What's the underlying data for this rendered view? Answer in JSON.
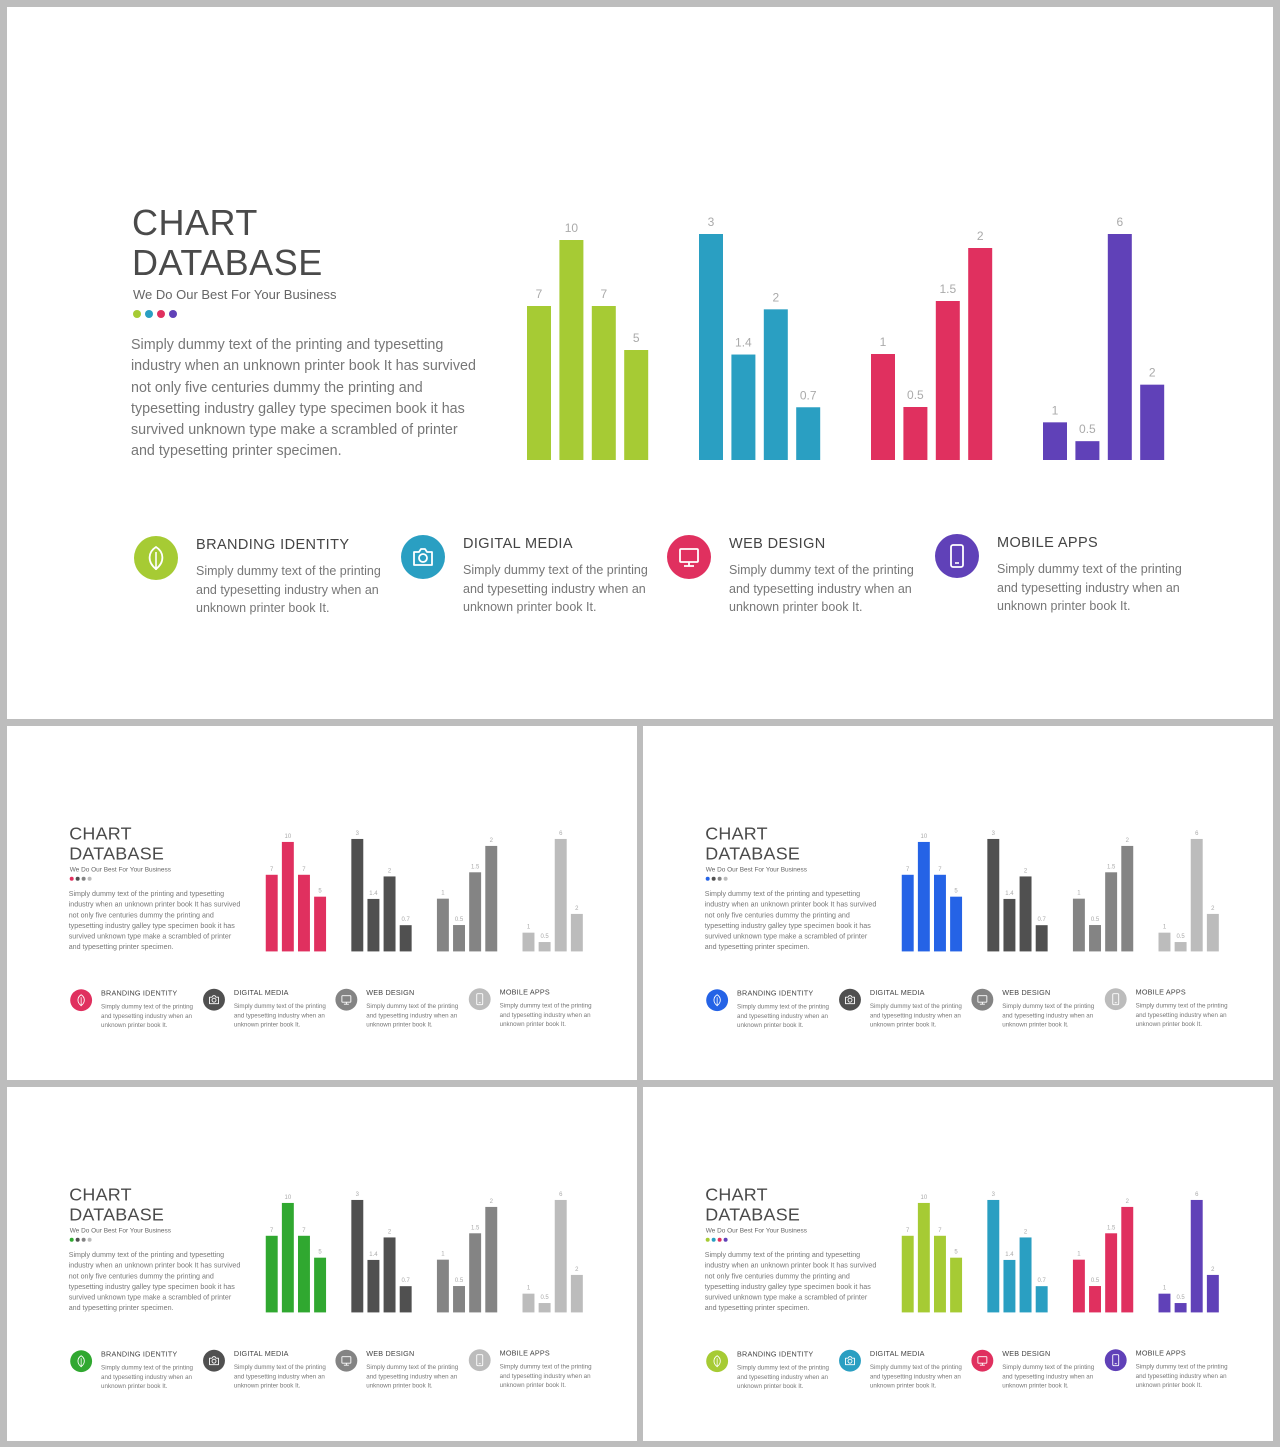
{
  "slide": {
    "title_line1": "CHART",
    "title_line2": "DATABASE",
    "subtitle": "We Do Our Best For Your Business",
    "description": "Simply dummy text of the printing and typesetting industry when an unknown printer book It has survived not only five centuries dummy the printing and typesetting industry galley type specimen book it has survived unknown type make a scrambled of printer and typesetting printer specimen.",
    "features": [
      {
        "title": "BRANDING IDENTITY",
        "text": "Simply dummy text of the printing and typesetting industry when an unknown printer book It.",
        "icon": "leaf-icon"
      },
      {
        "title": "DIGITAL MEDIA",
        "text": "Simply dummy text of the printing and typesetting industry when an unknown printer book It.",
        "icon": "camera-icon"
      },
      {
        "title": "WEB DESIGN",
        "text": "Simply dummy text of the printing and typesetting industry when an unknown printer book It.",
        "icon": "monitor-icon"
      },
      {
        "title": "MOBILE APPS",
        "text": "Simply dummy text of the printing and typesetting industry when an unknown printer book It.",
        "icon": "smartphone-icon"
      }
    ]
  },
  "chart_data": {
    "type": "bar",
    "groups": [
      {
        "values": [
          7,
          10,
          7,
          5
        ],
        "labels": [
          "7",
          "10",
          "7",
          "5"
        ]
      },
      {
        "values": [
          3,
          1.4,
          2,
          0.7
        ],
        "labels": [
          "3",
          "1.4",
          "2",
          "0.7"
        ]
      },
      {
        "values": [
          1,
          0.5,
          1.5,
          2
        ],
        "labels": [
          "1",
          "0.5",
          "1.5",
          "2"
        ]
      },
      {
        "values": [
          1,
          0.5,
          6,
          2
        ],
        "labels": [
          "1",
          "0.5",
          "6",
          "2"
        ]
      }
    ]
  },
  "variants": [
    {
      "id": "main",
      "colors": [
        "#a6cb34",
        "#2a9fc2",
        "#e0305f",
        "#6041b8"
      ]
    },
    {
      "id": "s1",
      "colors": [
        "#e0305f",
        "#505050",
        "#848484",
        "#bcbcbc"
      ]
    },
    {
      "id": "s2",
      "colors": [
        "#2563e6",
        "#505050",
        "#848484",
        "#bcbcbc"
      ]
    },
    {
      "id": "s3",
      "colors": [
        "#30a830",
        "#505050",
        "#848484",
        "#bcbcbc"
      ]
    },
    {
      "id": "s4",
      "colors": [
        "#a6cb34",
        "#2a9fc2",
        "#e0305f",
        "#6041b8"
      ]
    }
  ]
}
